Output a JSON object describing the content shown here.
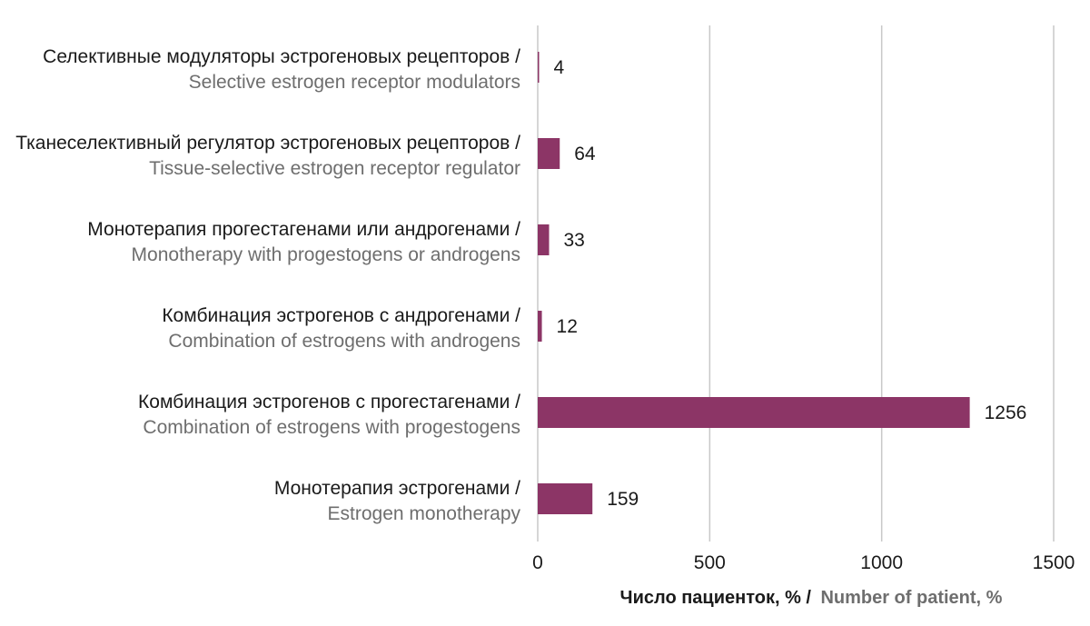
{
  "chart_data": {
    "type": "bar",
    "orientation": "horizontal",
    "categories": [
      {
        "ru": "Селективные модуляторы эстрогеновых рецепторов /",
        "en": "Selective estrogen receptor modulators"
      },
      {
        "ru": "Тканеселективный регулятор эстрогеновых рецепторов /",
        "en": "Tissue-selective estrogen receptor regulator"
      },
      {
        "ru": "Монотерапия прогестагенами или андрогенами /",
        "en": "Monotherapy with progestogens or androgens"
      },
      {
        "ru": "Комбинация эстрогенов с андрогенами /",
        "en": "Combination of estrogens with androgens"
      },
      {
        "ru": "Комбинация эстрогенов с прогестагенами /",
        "en": "Combination of estrogens with progestogens"
      },
      {
        "ru": "Монотерапия эстрогенами /",
        "en": "Estrogen monotherapy"
      }
    ],
    "values": [
      4,
      64,
      33,
      12,
      1256,
      159
    ],
    "data_labels": [
      "4",
      "64",
      "33",
      "12",
      "1256",
      "159"
    ],
    "xlim": [
      0,
      1500
    ],
    "xticks": [
      0,
      500,
      1000,
      1500
    ],
    "xtick_labels": [
      "0",
      "500",
      "1000",
      "1500"
    ],
    "xlabel_ru": "Число пациенток, % /",
    "xlabel_en": "Number of patient, %",
    "grid": true,
    "legend": false,
    "colors": {
      "bar": "#8c3566",
      "grid": "#c8c8c8"
    }
  }
}
